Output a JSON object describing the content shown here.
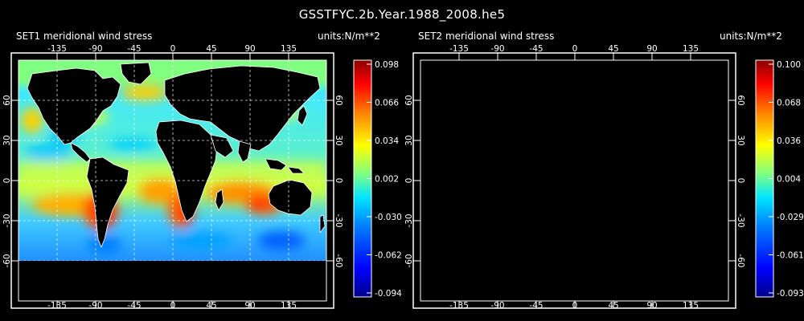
{
  "title": "GSSTFYC.2b.Year.1988_2008.he5",
  "panels": [
    {
      "label": "SET1 meridional wind stress",
      "units": "units:N/m**2",
      "colorbar_ticks": [
        "0.098",
        "0.066",
        "0.034",
        "0.002",
        "-0.030",
        "-0.062",
        "-0.094"
      ]
    },
    {
      "label": "SET2 meridional wind stress",
      "units": "units:N/m**2",
      "colorbar_ticks": [
        "0.100",
        "0.068",
        "0.036",
        "0.004",
        "-0.029",
        "-0.061",
        "-0.093"
      ]
    }
  ],
  "lon_ticks": [
    "-135",
    "-90",
    "-45",
    "0",
    "45",
    "90",
    "135"
  ],
  "lat_ticks": [
    "60",
    "30",
    "0",
    "-30",
    "-60"
  ],
  "colors": {
    "background": "#000000",
    "land": "#000000",
    "coast": "#ffffff",
    "colormap": [
      "#00008b",
      "#0000ff",
      "#0080ff",
      "#00e5ff",
      "#80ff80",
      "#ffff00",
      "#ff8000",
      "#ff0000",
      "#8b0000"
    ]
  }
}
